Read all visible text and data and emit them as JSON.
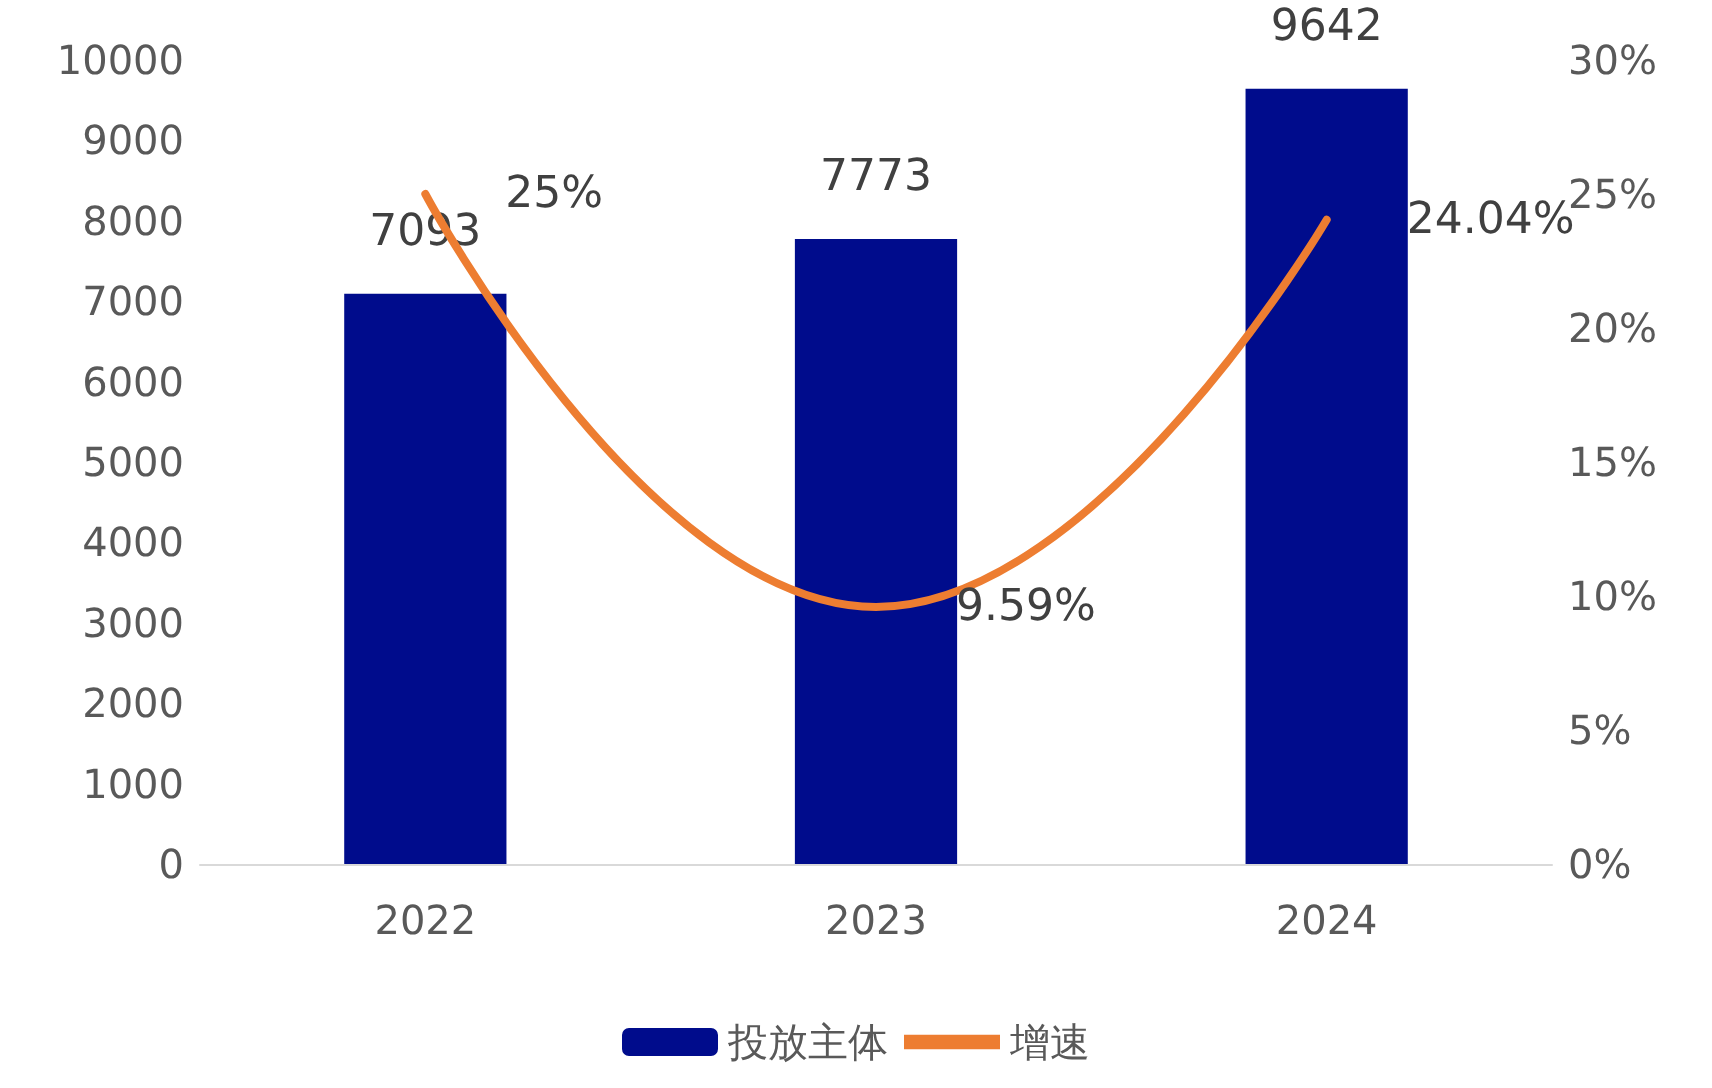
{
  "chart_data": {
    "type": "bar",
    "categories": [
      "2022",
      "2023",
      "2024"
    ],
    "series": [
      {
        "name": "投放主体",
        "color": "#000c8c",
        "values": [
          7093,
          7773,
          9642
        ],
        "value_labels": [
          "7093",
          "7773",
          "9642"
        ]
      },
      {
        "name": "增速",
        "type": "line",
        "axis": "y2",
        "color": "#ed7d31",
        "values": [
          25,
          9.59,
          24.04
        ],
        "value_labels": [
          "25%",
          "9.59%",
          "24.04%"
        ]
      }
    ],
    "ylim": [
      0,
      10000
    ],
    "yticks": [
      0,
      1000,
      2000,
      3000,
      4000,
      5000,
      6000,
      7000,
      8000,
      9000,
      10000
    ],
    "y2lim": [
      0,
      30
    ],
    "y2ticks": [
      {
        "value": 0,
        "label": "0%"
      },
      {
        "value": 5,
        "label": "5%"
      },
      {
        "value": 10,
        "label": "10%"
      },
      {
        "value": 15,
        "label": "15%"
      },
      {
        "value": 20,
        "label": "20%"
      },
      {
        "value": 25,
        "label": "25%"
      },
      {
        "value": 30,
        "label": "30%"
      }
    ],
    "grid": false,
    "legend": "bottom",
    "marker": "none",
    "line_style": "solid"
  }
}
